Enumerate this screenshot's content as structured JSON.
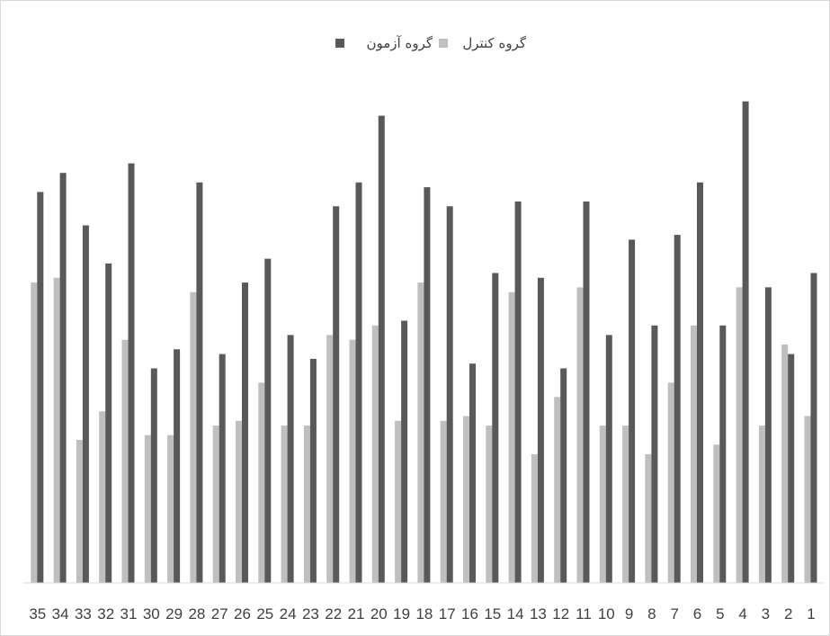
{
  "chart_data": {
    "type": "bar",
    "title": "",
    "xlabel": "",
    "ylabel": "",
    "ylim": [
      0,
      100
    ],
    "grid": false,
    "legend_position": "top",
    "x_order": "right-to-left",
    "categories": [
      "1",
      "2",
      "3",
      "4",
      "5",
      "6",
      "7",
      "8",
      "9",
      "10",
      "11",
      "12",
      "13",
      "14",
      "15",
      "16",
      "17",
      "18",
      "19",
      "20",
      "21",
      "22",
      "23",
      "24",
      "25",
      "26",
      "27",
      "28",
      "29",
      "30",
      "31",
      "32",
      "33",
      "34",
      "35"
    ],
    "series": [
      {
        "name": "گروه کنترل",
        "color": "#bfbfbf",
        "values": [
          35,
          50,
          33,
          62,
          29,
          54,
          42,
          27,
          33,
          33,
          62,
          39,
          27,
          61,
          33,
          35,
          34,
          63,
          34,
          54,
          51,
          52,
          33,
          33,
          42,
          34,
          33,
          61,
          31,
          31,
          51,
          36,
          30,
          64,
          63
        ]
      },
      {
        "name": "گروه آزمون",
        "color": "#595959",
        "values": [
          65,
          48,
          62,
          101,
          54,
          84,
          73,
          54,
          72,
          52,
          80,
          45,
          64,
          80,
          65,
          46,
          79,
          83,
          55,
          98,
          84,
          79,
          47,
          52,
          68,
          63,
          48,
          84,
          49,
          45,
          88,
          67,
          75,
          86,
          82
        ]
      }
    ]
  }
}
